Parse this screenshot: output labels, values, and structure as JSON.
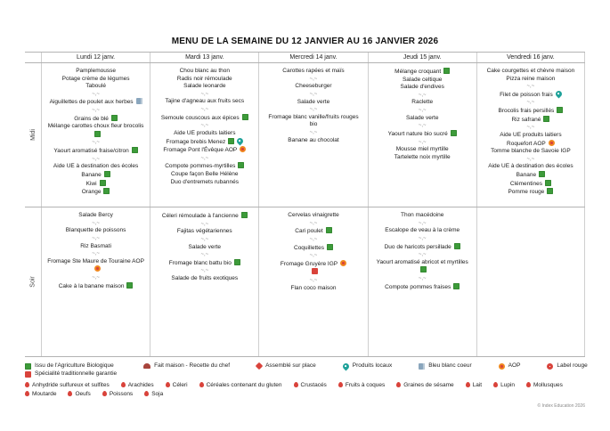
{
  "title": "MENU DE LA SEMAINE DU 12 JANVIER AU 16 JANVIER 2026",
  "separator": "~,~",
  "footer": "© Index Education 2026",
  "colors": {
    "bio": "#3d9b3a",
    "red": "#d9433b",
    "aop": "#f0881f",
    "local": "#1fa29a",
    "bbc": "#8aa6bd",
    "chef": "#a8443c"
  },
  "days": [
    "Lundi 12 janv.",
    "Mardi 13 janv.",
    "Mercredi 14 janv.",
    "Jeudi 15 janv.",
    "Vendredi 16 janv."
  ],
  "services": [
    {
      "key": "midi",
      "label": "Midi",
      "cells": [
        [
          {
            "text": "Pamplemousse"
          },
          {
            "text": "Potage crème de légumes"
          },
          {
            "text": "Taboulé"
          },
          {
            "sep": true
          },
          {
            "text": "Aiguillettes de poulet aux herbes",
            "icons": [
              "bbc"
            ]
          },
          {
            "sep": true
          },
          {
            "text": "Grains de blé",
            "icons": [
              "bio"
            ]
          },
          {
            "text": "Mélange carottes choux fleur brocolis",
            "icons": [
              "bio"
            ]
          },
          {
            "sep": true
          },
          {
            "text": "Yaourt aromatisé fraise/citron",
            "icons": [
              "bio"
            ]
          },
          {
            "sep": true
          },
          {
            "text": "Aide UE à destination des écoles"
          },
          {
            "text": "Banane",
            "icons": [
              "bio"
            ]
          },
          {
            "text": "Kiwi",
            "icons": [
              "bio"
            ]
          },
          {
            "text": "Orange",
            "icons": [
              "bio"
            ]
          }
        ],
        [
          {
            "text": "Chou blanc au thon"
          },
          {
            "text": "Radis noir rémoulade"
          },
          {
            "text": "Salade leonarde"
          },
          {
            "sep": true
          },
          {
            "text": "Tajine d'agneau aux fruits secs"
          },
          {
            "sep": true
          },
          {
            "text": "Semoule couscous aux épices",
            "icons": [
              "bio"
            ]
          },
          {
            "sep": true
          },
          {
            "text": "Aide UE produits laitiers"
          },
          {
            "text": "Fromage brebis Menez",
            "icons": [
              "bio",
              "local"
            ]
          },
          {
            "text": "Fromage Pont l'Évêque AOP",
            "icons": [
              "aop"
            ]
          },
          {
            "sep": true
          },
          {
            "text": "Compote pommes-myrtilles",
            "icons": [
              "bio"
            ]
          },
          {
            "text": "Coupe façon Belle Hélène"
          },
          {
            "text": "Duo d'entremets rubannés"
          }
        ],
        [
          {
            "text": "Carottes rapées et maïs"
          },
          {
            "sep": true
          },
          {
            "text": "Cheeseburger"
          },
          {
            "sep": true
          },
          {
            "text": "Salade verte"
          },
          {
            "sep": true
          },
          {
            "text": "Fromage blanc vanille/fruits rouges bio"
          },
          {
            "sep": true
          },
          {
            "text": "Banane au chocolat"
          }
        ],
        [
          {
            "text": "Mélange croquant",
            "icons": [
              "bio"
            ]
          },
          {
            "text": "Salade celtique"
          },
          {
            "text": "Salade d'endives"
          },
          {
            "sep": true
          },
          {
            "text": "Raclette"
          },
          {
            "sep": true
          },
          {
            "text": "Salade verte"
          },
          {
            "sep": true
          },
          {
            "text": "Yaourt nature bio sucré",
            "icons": [
              "bio"
            ]
          },
          {
            "sep": true
          },
          {
            "text": "Mousse miel myrtille"
          },
          {
            "text": "Tartelette noix myrtille"
          }
        ],
        [
          {
            "text": "Cake courgettes et chèvre maison"
          },
          {
            "text": "Pizza reine maison"
          },
          {
            "sep": true
          },
          {
            "text": "Filet de poisson frais",
            "icons": [
              "local"
            ]
          },
          {
            "sep": true
          },
          {
            "text": "Brocolis frais persillés",
            "icons": [
              "bio"
            ]
          },
          {
            "text": "Riz safrané",
            "icons": [
              "bio"
            ]
          },
          {
            "sep": true
          },
          {
            "text": "Aide UE produits laitiers"
          },
          {
            "text": "Roquefort AOP",
            "icons": [
              "aop"
            ]
          },
          {
            "text": "Tomme blanche de Savoie IGP"
          },
          {
            "sep": true
          },
          {
            "text": "Aide UE à destination des écoles"
          },
          {
            "text": "Banane",
            "icons": [
              "bio"
            ]
          },
          {
            "text": "Clémentines",
            "icons": [
              "bio"
            ]
          },
          {
            "text": "Pomme rouge",
            "icons": [
              "bio"
            ]
          }
        ]
      ]
    },
    {
      "key": "soir",
      "label": "Soir",
      "cells": [
        [
          {
            "text": "Salade Bercy"
          },
          {
            "sep": true
          },
          {
            "text": "Blanquette de poissons"
          },
          {
            "sep": true
          },
          {
            "text": "Riz Basmati"
          },
          {
            "sep": true
          },
          {
            "text": "Fromage Ste Maure de Touraine AOP",
            "icons": [
              "aop"
            ]
          },
          {
            "sep": true
          },
          {
            "text": "Cake à la banane maison",
            "icons": [
              "bio"
            ]
          }
        ],
        [
          {
            "text": "Céleri rémoulade à l'ancienne",
            "icons": [
              "bio"
            ]
          },
          {
            "sep": true
          },
          {
            "text": "Fajitas végétariennes"
          },
          {
            "sep": true
          },
          {
            "text": "Salade verte"
          },
          {
            "sep": true
          },
          {
            "text": "Fromage blanc battu bio",
            "icons": [
              "bio"
            ]
          },
          {
            "sep": true
          },
          {
            "text": "Salade de fruits exotiques"
          }
        ],
        [
          {
            "text": "Cervelas vinaigrette"
          },
          {
            "sep": true
          },
          {
            "text": "Cari poulet",
            "icons": [
              "bio"
            ]
          },
          {
            "sep": true
          },
          {
            "text": "Coquillettes",
            "icons": [
              "bio"
            ]
          },
          {
            "sep": true
          },
          {
            "text": "Fromage Gruyère IGP",
            "icons": [
              "aop"
            ]
          },
          {
            "icons": [
              "stg"
            ]
          },
          {
            "sep": true
          },
          {
            "text": "Flan coco maison"
          }
        ],
        [
          {
            "text": "Thon macédoine"
          },
          {
            "sep": true
          },
          {
            "text": "Escalope de veau à la crème"
          },
          {
            "sep": true
          },
          {
            "text": "Duo de haricots persillade",
            "icons": [
              "bio"
            ]
          },
          {
            "sep": true
          },
          {
            "text": "Yaourt aromatisé abricot et myrtilles",
            "icons": [
              "bio"
            ]
          },
          {
            "sep": true
          },
          {
            "text": "Compote pommes fraises",
            "icons": [
              "bio"
            ]
          }
        ],
        []
      ]
    }
  ],
  "legend": {
    "items": [
      {
        "icon": "bio",
        "label": "Issu de l'Agriculture Biologique"
      },
      {
        "icon": "stg",
        "label": "Spécialité traditionnelle garantie"
      },
      {
        "icon": "chef",
        "label": "Fait maison - Recette du chef"
      },
      {
        "icon": "assemble",
        "label": "Assemblé sur place"
      },
      {
        "icon": "local",
        "label": "Produits locaux"
      },
      {
        "icon": "bbc",
        "label": "Bleu blanc coeur"
      },
      {
        "icon": "aop",
        "label": "AOP"
      },
      {
        "icon": "label-rouge",
        "label": "Label rouge"
      }
    ],
    "allergens": [
      "Anhydride sulfureux et sulfites",
      "Arachides",
      "Céleri",
      "Céréales contenant du gluten",
      "Crustacés",
      "Fruits à coques",
      "Graines de sésame",
      "Lait",
      "Lupin",
      "Mollusques",
      "Moutarde",
      "Oeufs",
      "Poissons",
      "Soja"
    ]
  }
}
